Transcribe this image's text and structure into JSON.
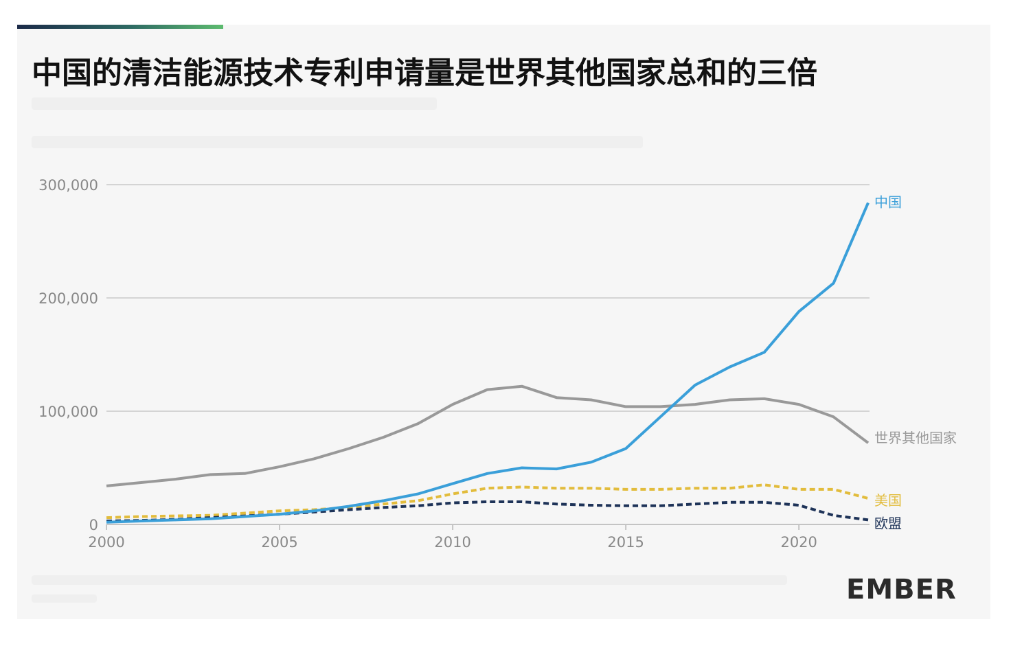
{
  "title": "中国的清洁能源技术专利申请量是世界其他国家总和的三倍",
  "logo": "EMBER",
  "colors": {
    "china": "#3a9fd9",
    "rest_of_world": "#999999",
    "usa": "#e2bc3c",
    "eu": "#1e3358",
    "grid": "#d4d4d4",
    "tick_label": "#888888"
  },
  "chart_data": {
    "type": "line",
    "x": [
      2000,
      2001,
      2002,
      2003,
      2004,
      2005,
      2006,
      2007,
      2008,
      2009,
      2010,
      2011,
      2012,
      2013,
      2014,
      2015,
      2016,
      2017,
      2018,
      2019,
      2020,
      2021,
      2022
    ],
    "xlim": [
      2000,
      2022
    ],
    "ylim": [
      0,
      300000
    ],
    "x_ticks": [
      2000,
      2005,
      2010,
      2015,
      2020
    ],
    "x_tick_labels": [
      "2000",
      "2005",
      "2010",
      "2015",
      "2020"
    ],
    "y_ticks": [
      0,
      100000,
      200000,
      300000
    ],
    "y_tick_labels": [
      "0",
      "100,000",
      "200,000",
      "300,000"
    ],
    "grid": true,
    "legend": "direct labels at line ends",
    "series": [
      {
        "name": "中国",
        "color": "#3a9fd9",
        "style": "solid",
        "values": [
          2000,
          3000,
          4000,
          5000,
          7000,
          9000,
          12000,
          16000,
          21000,
          27000,
          36000,
          45000,
          50000,
          49000,
          55000,
          67000,
          95000,
          123000,
          139000,
          152000,
          188000,
          213000,
          284000
        ]
      },
      {
        "name": "世界其他国家",
        "color": "#999999",
        "style": "solid",
        "values": [
          34000,
          37000,
          40000,
          44000,
          45000,
          51000,
          58000,
          67000,
          77000,
          89000,
          106000,
          119000,
          122000,
          112000,
          110000,
          104000,
          104000,
          106000,
          110000,
          111000,
          106000,
          95000,
          72000
        ]
      },
      {
        "name": "美国",
        "color": "#e2bc3c",
        "style": "dashed",
        "values": [
          6000,
          7000,
          7500,
          8000,
          10000,
          12000,
          13000,
          15000,
          18000,
          21000,
          27000,
          32000,
          33000,
          32000,
          32000,
          31000,
          31000,
          32000,
          32000,
          35000,
          31000,
          31000,
          23000
        ]
      },
      {
        "name": "欧盟",
        "color": "#1e3358",
        "style": "dashed",
        "values": [
          3000,
          3500,
          4500,
          6000,
          7500,
          9000,
          11000,
          13000,
          15000,
          16500,
          19000,
          20000,
          20000,
          18000,
          17000,
          16500,
          16500,
          18000,
          19500,
          19500,
          17000,
          8000,
          4000
        ]
      }
    ]
  }
}
